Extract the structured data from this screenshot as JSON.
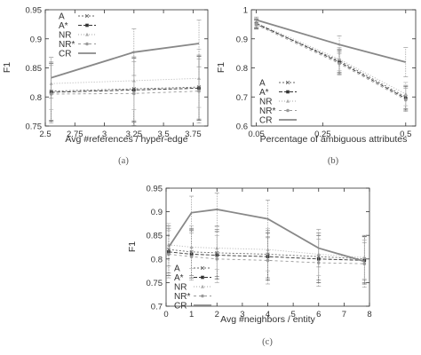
{
  "colors": {
    "CR": "#888888",
    "A": "#666666",
    "A*": "#333333",
    "NR": "#aaaaaa",
    "NR*": "#999999",
    "frame": "#333333"
  },
  "chart_data": [
    {
      "type": "line",
      "caption": "(a)",
      "xlabel": "Avg #references / hyper-edge",
      "ylabel": "F1",
      "xlim": [
        2.5,
        3.875
      ],
      "ylim": [
        0.75,
        0.95
      ],
      "xticks": [
        2.5,
        2.75,
        3,
        3.25,
        3.5,
        3.75
      ],
      "xtick_labels": [
        "2.5",
        "2.75",
        "3",
        "3.25",
        "3.5",
        "3.75"
      ],
      "yticks": [
        0.75,
        0.8,
        0.85,
        0.9,
        0.95
      ],
      "ytick_labels": [
        "0.75",
        "0.8",
        "0.85",
        "0.9",
        "0.95"
      ],
      "legend_position": "top-left",
      "grid": false,
      "series": [
        {
          "name": "A",
          "x": [
            2.55,
            3.25,
            3.8
          ],
          "y": [
            0.81,
            0.814,
            0.817
          ],
          "err": [
            0.05,
            0.055,
            0.055
          ]
        },
        {
          "name": "A*",
          "x": [
            2.55,
            3.25,
            3.8
          ],
          "y": [
            0.808,
            0.812,
            0.815
          ],
          "err": [
            0.05,
            0.055,
            0.055
          ]
        },
        {
          "name": "NR",
          "x": [
            2.55,
            3.25,
            3.8
          ],
          "y": [
            0.823,
            0.828,
            0.832
          ],
          "err": [
            0.045,
            0.05,
            0.05
          ]
        },
        {
          "name": "NR*",
          "x": [
            2.55,
            3.25,
            3.8
          ],
          "y": [
            0.805,
            0.806,
            0.81
          ],
          "err": [
            0.05,
            0.055,
            0.055
          ]
        },
        {
          "name": "CR",
          "x": [
            2.55,
            3.25,
            3.8
          ],
          "y": [
            0.833,
            0.877,
            0.892
          ],
          "err": [
            0.035,
            0.04,
            0.04
          ]
        }
      ]
    },
    {
      "type": "line",
      "caption": "(b)",
      "xlabel": "Percentage of ambiguous attributes",
      "ylabel": "F1",
      "xlim": [
        0.035,
        0.53
      ],
      "ylim": [
        0.6,
        1.0
      ],
      "xticks": [
        0.05,
        0.25,
        0.5
      ],
      "xtick_labels": [
        "0.05",
        "0.25",
        "0.5"
      ],
      "yticks": [
        0.6,
        0.7,
        0.8,
        0.9,
        1
      ],
      "ytick_labels": [
        "0.6",
        "0.7",
        "0.8",
        "0.9",
        "1"
      ],
      "legend_position": "bottom-left",
      "grid": false,
      "series": [
        {
          "name": "A",
          "x": [
            0.05,
            0.3,
            0.5
          ],
          "y": [
            0.95,
            0.825,
            0.7
          ],
          "err": [
            0.015,
            0.04,
            0.04
          ]
        },
        {
          "name": "A*",
          "x": [
            0.05,
            0.3,
            0.5
          ],
          "y": [
            0.953,
            0.82,
            0.695
          ],
          "err": [
            0.015,
            0.04,
            0.04
          ]
        },
        {
          "name": "NR",
          "x": [
            0.05,
            0.3,
            0.5
          ],
          "y": [
            0.955,
            0.83,
            0.71
          ],
          "err": [
            0.015,
            0.04,
            0.04
          ]
        },
        {
          "name": "NR*",
          "x": [
            0.05,
            0.3,
            0.5
          ],
          "y": [
            0.948,
            0.815,
            0.69
          ],
          "err": [
            0.015,
            0.04,
            0.04
          ]
        },
        {
          "name": "CR",
          "x": [
            0.05,
            0.3,
            0.5
          ],
          "y": [
            0.965,
            0.88,
            0.82
          ],
          "err": [
            0.01,
            0.03,
            0.05
          ]
        }
      ]
    },
    {
      "type": "line",
      "caption": "(c)",
      "xlabel": "Avg #neighbors / entity",
      "ylabel": "F1",
      "xlim": [
        0,
        8
      ],
      "ylim": [
        0.7,
        0.95
      ],
      "xticks": [
        0,
        1,
        2,
        3,
        4,
        5,
        6,
        7,
        8
      ],
      "xtick_labels": [
        "0",
        "1",
        "2",
        "3",
        "4",
        "5",
        "6",
        "7",
        "8"
      ],
      "yticks": [
        0.7,
        0.75,
        0.8,
        0.85,
        0.9,
        0.95
      ],
      "ytick_labels": [
        "0.7",
        "0.75",
        "0.8",
        "0.85",
        "0.9",
        "0.95"
      ],
      "legend_position": "bottom-left",
      "grid": false,
      "series": [
        {
          "name": "A",
          "x": [
            0.1,
            1,
            2,
            4,
            6,
            7.8
          ],
          "y": [
            0.82,
            0.815,
            0.813,
            0.81,
            0.805,
            0.8
          ],
          "err": [
            0.05,
            0.05,
            0.05,
            0.05,
            0.05,
            0.05
          ]
        },
        {
          "name": "A*",
          "x": [
            0.1,
            1,
            2,
            4,
            6,
            7.8
          ],
          "y": [
            0.815,
            0.81,
            0.808,
            0.805,
            0.8,
            0.797
          ],
          "err": [
            0.05,
            0.05,
            0.05,
            0.05,
            0.05,
            0.05
          ]
        },
        {
          "name": "NR",
          "x": [
            0.1,
            1,
            2,
            4,
            6,
            7.8
          ],
          "y": [
            0.83,
            0.825,
            0.823,
            0.82,
            0.81,
            0.803
          ],
          "err": [
            0.045,
            0.045,
            0.045,
            0.045,
            0.045,
            0.045
          ]
        },
        {
          "name": "NR*",
          "x": [
            0.1,
            1,
            2,
            4,
            6,
            7.8
          ],
          "y": [
            0.81,
            0.805,
            0.8,
            0.797,
            0.792,
            0.79
          ],
          "err": [
            0.05,
            0.05,
            0.05,
            0.05,
            0.05,
            0.05
          ]
        },
        {
          "name": "CR",
          "x": [
            0.1,
            1,
            2,
            4,
            6,
            7.8
          ],
          "y": [
            0.825,
            0.898,
            0.905,
            0.885,
            0.823,
            0.795
          ],
          "err": [
            0.04,
            0.035,
            0.035,
            0.04,
            0.04,
            0.04
          ]
        }
      ]
    }
  ]
}
